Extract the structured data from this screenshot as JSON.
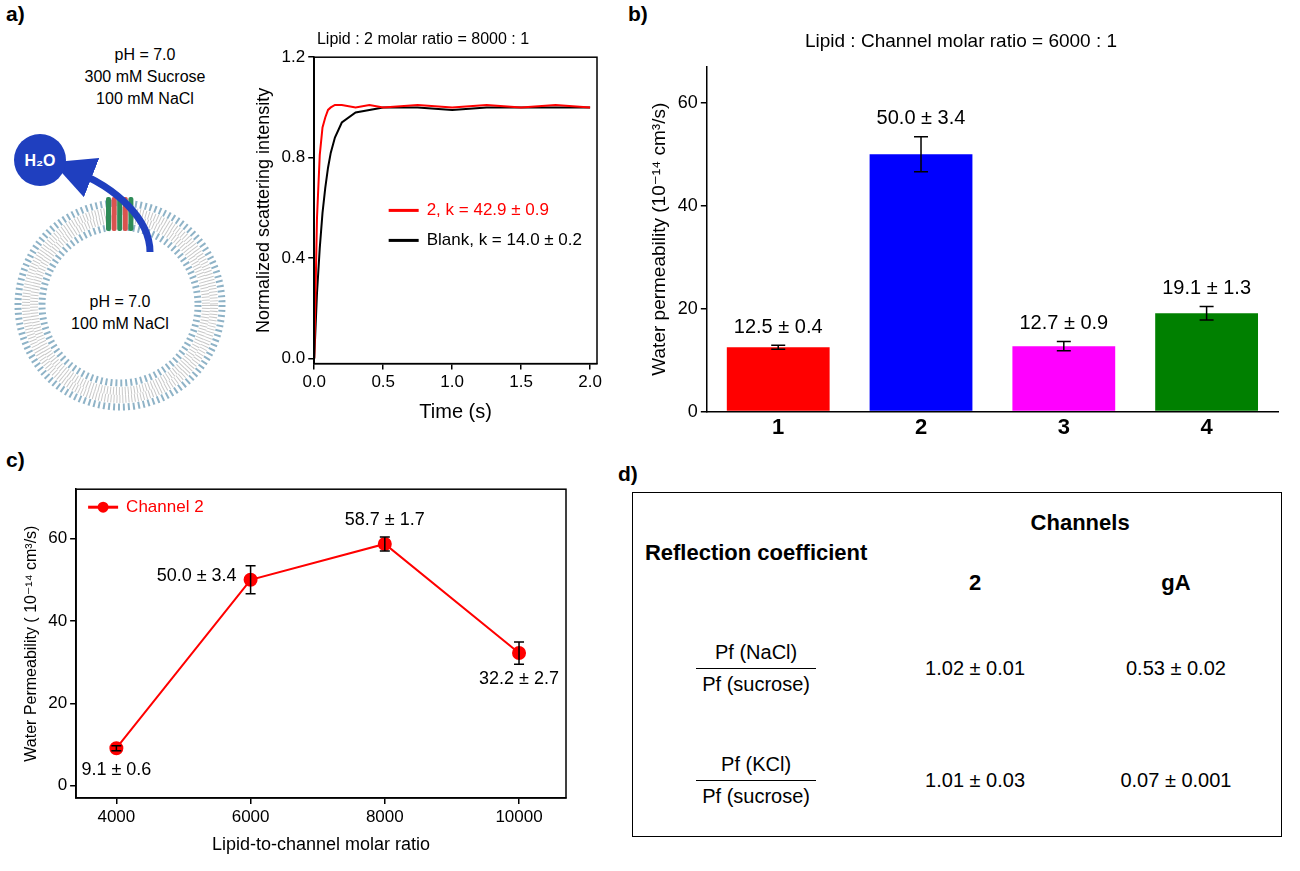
{
  "chart_data": [
    {
      "panel": "a)",
      "type": "line",
      "title": "Lipid : 2 molar ratio = 8000 : 1",
      "x_label": "Time (s)",
      "y_label": "Normalized scattering intensity",
      "x": [
        0,
        0.02,
        0.04,
        0.06,
        0.08,
        0.1,
        0.12,
        0.15,
        0.2,
        0.3,
        0.4,
        0.5,
        0.75,
        1.0,
        1.25,
        1.5,
        1.75,
        2.0
      ],
      "series": [
        {
          "name": "2, k = 42.9 ± 0.9",
          "color": "#ff0000",
          "values": [
            0,
            0.56,
            0.81,
            0.92,
            0.96,
            0.99,
            1.0,
            1.01,
            1.01,
            1.0,
            1.01,
            1.0,
            1.01,
            1.0,
            1.01,
            1.0,
            1.01,
            1.0
          ]
        },
        {
          "name": "Blank, k = 14.0 ± 0.2",
          "color": "#000000",
          "values": [
            0,
            0.26,
            0.44,
            0.58,
            0.68,
            0.76,
            0.82,
            0.88,
            0.94,
            0.98,
            0.99,
            1.0,
            1.0,
            0.99,
            1.0,
            1.0,
            1.0,
            1.0
          ]
        }
      ],
      "xlim": [
        0,
        2.05
      ],
      "xticks": [
        {
          "value": 0,
          "label": "0.0"
        },
        {
          "value": 0.5,
          "label": "0.5"
        },
        {
          "value": 1,
          "label": "1.0"
        },
        {
          "value": 1.5,
          "label": "1.5"
        },
        {
          "value": 2,
          "label": "2.0"
        }
      ],
      "ylim": [
        -0.02,
        1.2
      ],
      "yticks": [
        {
          "value": 0,
          "label": "0.0"
        },
        {
          "value": 0.4,
          "label": "0.4"
        },
        {
          "value": 0.8,
          "label": "0.8"
        },
        {
          "value": 1.2,
          "label": "1.2"
        }
      ],
      "grid": false,
      "legend": "center right",
      "marker": "none",
      "line_style": "solid"
    },
    {
      "panel": "b)",
      "type": "bar",
      "title": "Lipid : Channel molar ratio = 6000 : 1",
      "y_label": "Water permeability (10⁻¹⁴ cm³/s)",
      "categories": [
        "1",
        "2",
        "3",
        "4"
      ],
      "values": [
        12.5,
        50.0,
        12.7,
        19.1
      ],
      "errors": [
        0.4,
        3.4,
        0.9,
        1.3
      ],
      "value_labels": [
        "12.5 ± 0.4",
        "50.0 ± 3.4",
        "12.7 ± 0.9",
        "19.1 ± 1.3"
      ],
      "colors": [
        "#ff0000",
        "#0000ff",
        "#ff00ff",
        "#008000"
      ],
      "ylim": [
        0,
        67
      ],
      "yticks": [
        0,
        20,
        40,
        60
      ],
      "grid": false,
      "data_labels": true
    },
    {
      "panel": "c)",
      "type": "line",
      "x_label": "Lipid-to-channel molar ratio",
      "y_label": "Water Permeability ( 10⁻¹⁴ cm³/s)",
      "x": [
        4000,
        6000,
        8000,
        10000
      ],
      "series": [
        {
          "name": "Channel 2",
          "color": "#ff0000",
          "values": [
            9.1,
            50.0,
            58.7,
            32.2
          ],
          "errors": [
            0.6,
            3.4,
            1.7,
            2.7
          ],
          "value_labels": [
            "9.1 ± 0.6",
            "50.0 ± 3.4",
            "58.7 ± 1.7",
            "32.2 ± 2.7"
          ]
        }
      ],
      "xlim": [
        3400,
        10700
      ],
      "xticks": [
        4000,
        6000,
        8000,
        10000
      ],
      "ylim": [
        -3,
        72
      ],
      "yticks": [
        0,
        20,
        40,
        60
      ],
      "grid": false,
      "legend": "top left",
      "data_labels": true,
      "marker": "circle",
      "line_style": "solid"
    }
  ],
  "schematic": {
    "outside": [
      "pH = 7.0",
      "300 mM Sucrose",
      "100 mM NaCl"
    ],
    "inside": [
      "pH = 7.0",
      "100 mM NaCl"
    ],
    "molecule": "H₂O"
  },
  "table": {
    "panel": "d)",
    "header": "Reflection coefficient",
    "group_header": "Channels",
    "columns": [
      "2",
      "gA"
    ],
    "rows": [
      {
        "numerator": "Pf (NaCl)",
        "denominator": "Pf (sucrose)",
        "cells": [
          "1.02 ± 0.01",
          "0.53 ± 0.02"
        ]
      },
      {
        "numerator": "Pf (KCl)",
        "denominator": "Pf (sucrose)",
        "cells": [
          "1.01 ± 0.03",
          "0.07 ± 0.001"
        ]
      }
    ]
  }
}
